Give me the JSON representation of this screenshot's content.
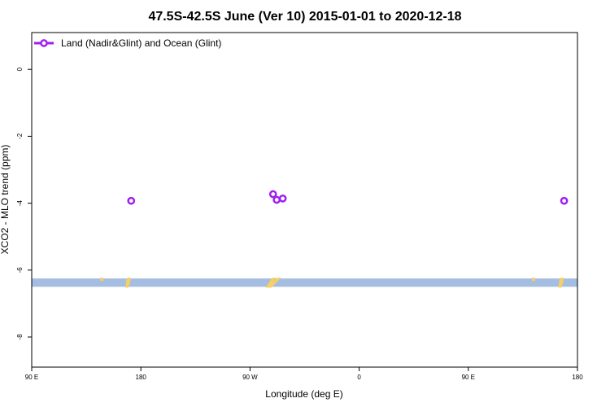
{
  "chart_data": {
    "type": "scatter",
    "title": "47.5S-42.5S June (Ver 10)   2015-01-01 to 2020-12-18",
    "xlabel": "Longitude (deg E)",
    "ylabel": "XCO2 - MLO trend (ppm)",
    "x_ticks": [
      {
        "pos": 90,
        "label": "90 E"
      },
      {
        "pos": 180,
        "label": "180"
      },
      {
        "pos": 270,
        "label": "90 W"
      },
      {
        "pos": 360,
        "label": "0"
      },
      {
        "pos": 450,
        "label": "90 E"
      },
      {
        "pos": 540,
        "label": "180"
      }
    ],
    "xlim": [
      90,
      540
    ],
    "ylim": [
      -8.9,
      1.1
    ],
    "y_ticks": [
      0,
      -2,
      -4,
      -6,
      -8
    ],
    "grid": false,
    "legend_position": "top-left",
    "series": [
      {
        "name": "Land (Nadir&Glint) and Ocean (Glint)",
        "color": "#a020f0",
        "marker": "open-circle",
        "points": [
          {
            "x": 172,
            "y": -3.93
          },
          {
            "x": 289,
            "y": -3.73
          },
          {
            "x": 292,
            "y": -3.9
          },
          {
            "x": 297,
            "y": -3.86
          },
          {
            "x": 529,
            "y": -3.93
          }
        ]
      }
    ],
    "land_band": {
      "color": "#a5bde0",
      "land_color": "#f7d065",
      "y_range": [
        -6.5,
        -6.25
      ],
      "land_segments": [
        {
          "x0": 147,
          "x1": 148.5,
          "y0": -6.25,
          "y1": -6.3
        },
        {
          "x0": 168,
          "x1": 170,
          "y0": -6.5,
          "y1": -6.3
        },
        {
          "x0": 169,
          "x1": 171,
          "y0": -6.4,
          "y1": -6.25
        },
        {
          "x0": 284,
          "x1": 290,
          "y0": -6.5,
          "y1": -6.25
        },
        {
          "x0": 286,
          "x1": 294,
          "y0": -6.5,
          "y1": -6.25
        },
        {
          "x0": 503,
          "x1": 504.5,
          "y0": -6.25,
          "y1": -6.3
        },
        {
          "x0": 525,
          "x1": 527,
          "y0": -6.5,
          "y1": -6.3
        },
        {
          "x0": 526,
          "x1": 528,
          "y0": -6.4,
          "y1": -6.25
        }
      ]
    }
  }
}
